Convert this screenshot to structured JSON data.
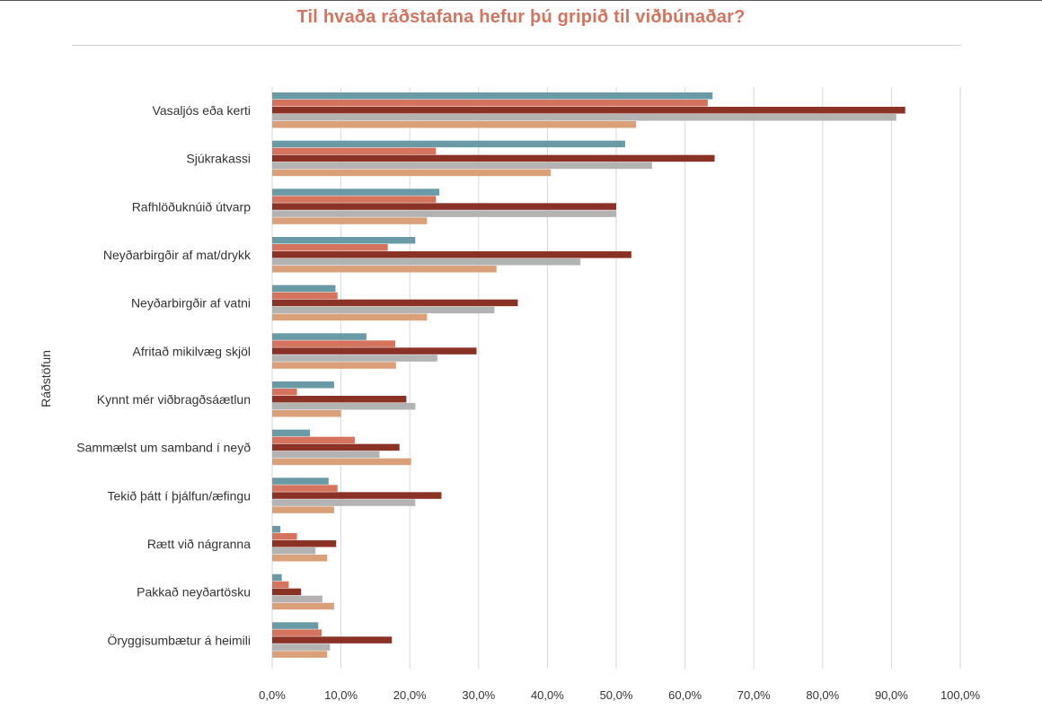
{
  "chart_data": {
    "type": "bar",
    "orientation": "horizontal",
    "title": "Til hvaða ráðstafana hefur þú gripið til viðbúnaðar?",
    "ylabel": "Ráðstöfun",
    "xlabel": "",
    "xlim": [
      0,
      100
    ],
    "x_tick_labels": [
      "0,0%",
      "10,0%",
      "20,0%",
      "30,0%",
      "40,0%",
      "50,0%",
      "60,0%",
      "70,0%",
      "80,0%",
      "90,0%",
      "100,0%"
    ],
    "grid": true,
    "legend": "none",
    "categories": [
      "Vasaljós eða kerti",
      "Sjúkrakassi",
      "Rafhlöðuknúið útvarp",
      "Neyðarbirgðir af mat/drykk",
      "Neyðarbirgðir af vatni",
      "Afritað mikilvæg skjöl",
      "Kynnt mér viðbragðsáætlun",
      "Sammælst um samband í neyð",
      "Tekið þátt í þjálfun/æfingu",
      "Rætt við nágranna",
      "Pakkað neyðartösku",
      "Öryggisumbætur á heimili"
    ],
    "series": [
      {
        "color": "#6a9aa6",
        "values": [
          64.0,
          51.3,
          24.3,
          20.8,
          9.2,
          13.7,
          9.0,
          5.5,
          8.2,
          1.2,
          1.4,
          6.7
        ]
      },
      {
        "color": "#d4735e",
        "values": [
          63.3,
          23.8,
          23.8,
          16.8,
          9.5,
          17.9,
          3.6,
          12.0,
          9.5,
          3.6,
          2.4,
          7.2
        ]
      },
      {
        "color": "#8b3226",
        "values": [
          92.0,
          64.3,
          50.0,
          52.2,
          35.7,
          29.7,
          19.5,
          18.5,
          24.6,
          9.3,
          4.2,
          17.4
        ]
      },
      {
        "color": "#b3b3b3",
        "values": [
          90.7,
          55.2,
          50.0,
          44.8,
          32.3,
          24.0,
          20.8,
          15.6,
          20.8,
          6.3,
          7.3,
          8.4
        ]
      },
      {
        "color": "#d9a07a",
        "values": [
          52.9,
          40.5,
          22.5,
          32.6,
          22.5,
          18.0,
          10.0,
          20.2,
          9.0,
          8.0,
          9.0,
          8.0
        ]
      }
    ]
  }
}
